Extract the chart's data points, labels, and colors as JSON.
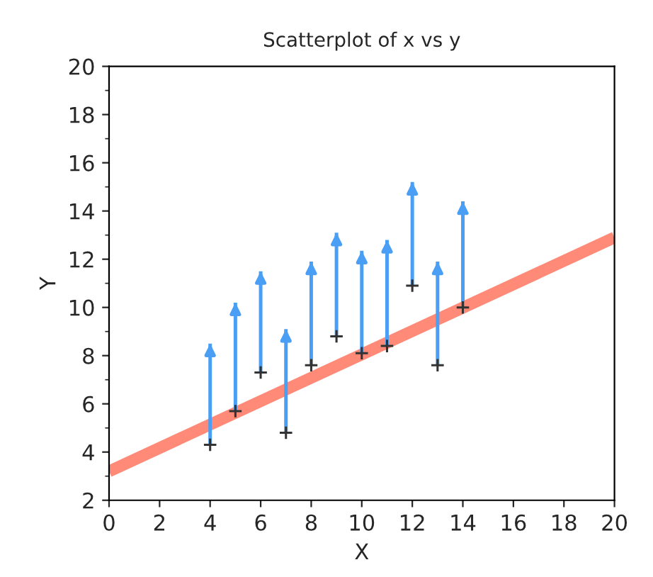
{
  "chart_data": {
    "type": "scatter",
    "title": "Scatterplot of x vs y",
    "xlabel": "X",
    "ylabel": "Y",
    "x": [
      4,
      5,
      6,
      7,
      8,
      9,
      10,
      11,
      12,
      13,
      14
    ],
    "series": [
      {
        "type": "line",
        "color": "#ff8a78",
        "x": [
          0,
          20
        ],
        "values": [
          3.2,
          12.9
        ],
        "marker": "none",
        "line_style": "solid"
      },
      {
        "color": "#333333",
        "values": [
          4.3,
          5.7,
          7.3,
          4.8,
          7.6,
          8.8,
          8.1,
          8.4,
          10.9,
          7.6,
          10.0
        ],
        "marker": "cross",
        "errors": [
          [
            4.3,
            8.5
          ],
          [
            5.7,
            10.2
          ],
          [
            7.3,
            11.5
          ],
          [
            4.8,
            9.1
          ],
          [
            7.6,
            11.9
          ],
          [
            8.8,
            13.1
          ],
          [
            8.1,
            12.35
          ],
          [
            8.4,
            12.8
          ],
          [
            10.9,
            15.2
          ],
          [
            7.6,
            11.9
          ],
          [
            10.0,
            14.4
          ]
        ]
      }
    ],
    "xlim": [
      0,
      20
    ],
    "xticks": [
      0,
      2,
      4,
      6,
      8,
      10,
      12,
      14,
      16,
      18,
      20
    ],
    "ylim": [
      2,
      20
    ],
    "yticks": [
      2,
      4,
      6,
      8,
      10,
      12,
      14,
      16,
      18,
      20
    ],
    "grid": false,
    "legend": false
  }
}
